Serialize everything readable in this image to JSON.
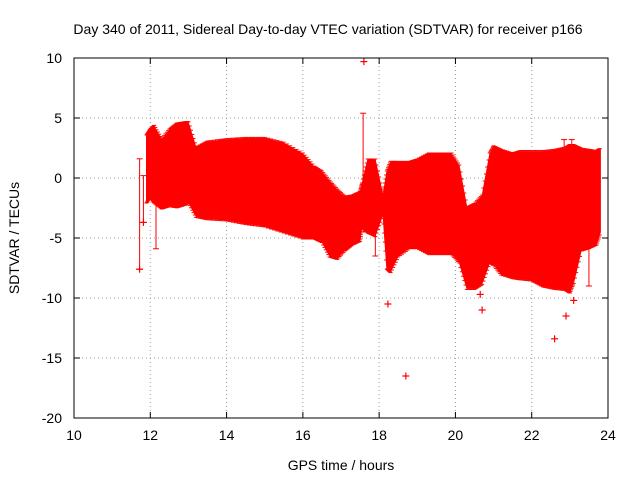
{
  "chart_data": {
    "type": "scatter",
    "title": "Day 340 of 2011, Sidereal Day-to-day VTEC variation (SDTVAR) for receiver p166",
    "xlabel": "GPS time / hours",
    "ylabel": "SDTVAR / TECUs",
    "xlim": [
      10,
      24
    ],
    "ylim": [
      -20,
      10
    ],
    "x_ticks": [
      10,
      12,
      14,
      16,
      18,
      20,
      22,
      24
    ],
    "y_ticks": [
      10,
      5,
      0,
      -5,
      -10,
      -15,
      -20
    ],
    "grid": "dotted",
    "color": "#ff0000",
    "marker": "+",
    "series": [
      {
        "name": "SDTVAR",
        "envelope": {
          "x": [
            11.9,
            12.0,
            12.1,
            12.3,
            12.5,
            12.7,
            12.9,
            13.0,
            13.2,
            13.5,
            14.0,
            14.5,
            15.0,
            15.5,
            16.0,
            16.3,
            16.5,
            16.7,
            16.9,
            17.1,
            17.3,
            17.5,
            17.55,
            17.7,
            17.9,
            18.1,
            18.2,
            18.3,
            18.5,
            18.8,
            19.0,
            19.3,
            19.6,
            19.9,
            20.1,
            20.3,
            20.5,
            20.7,
            20.9,
            21.0,
            21.2,
            21.5,
            21.7,
            22.0,
            22.3,
            22.6,
            22.9,
            23.0,
            23.1,
            23.3,
            23.5,
            23.7,
            23.8
          ],
          "top": [
            3.5,
            4.0,
            4.3,
            3.2,
            4.0,
            4.5,
            4.6,
            4.6,
            2.5,
            3.0,
            3.2,
            3.3,
            3.3,
            2.9,
            2.0,
            0.9,
            0.5,
            -0.3,
            -1.0,
            -1.6,
            -1.5,
            -1.2,
            -0.5,
            1.5,
            1.5,
            -1.5,
            0.5,
            1.3,
            1.3,
            1.3,
            1.5,
            2.0,
            2.0,
            2.0,
            1.0,
            -2.5,
            -2.2,
            -1.5,
            2.0,
            2.6,
            2.3,
            2.0,
            2.2,
            2.2,
            2.2,
            2.3,
            2.5,
            2.7,
            2.7,
            2.4,
            2.3,
            2.2,
            2.4
          ],
          "bottom": [
            -2.0,
            -1.5,
            -2.0,
            -2.5,
            -2.3,
            -2.4,
            -2.2,
            -2.0,
            -3.2,
            -3.4,
            -3.5,
            -3.8,
            -4.0,
            -4.5,
            -5.0,
            -5.0,
            -5.3,
            -6.5,
            -6.7,
            -6.0,
            -5.5,
            -5.2,
            -4.0,
            -4.5,
            -4.8,
            -3.0,
            -7.5,
            -7.8,
            -6.5,
            -5.8,
            -5.8,
            -6.3,
            -6.3,
            -6.3,
            -7.0,
            -9.2,
            -9.2,
            -8.8,
            -7.0,
            -7.2,
            -8.0,
            -8.3,
            -8.4,
            -8.5,
            -9.0,
            -9.2,
            -9.3,
            -9.5,
            -8.7,
            -6.0,
            -5.8,
            -5.5,
            -4.5
          ]
        },
        "error_bars": [
          {
            "x": 11.72,
            "low": -7.6,
            "high": 1.6
          },
          {
            "x": 11.82,
            "low": -3.7,
            "high": 0.2
          },
          {
            "x": 12.15,
            "low": -5.9,
            "high": 0.8
          },
          {
            "x": 17.58,
            "low": -4.5,
            "high": 5.4
          },
          {
            "x": 17.9,
            "low": -6.5,
            "high": -0.5
          },
          {
            "x": 22.85,
            "low": -0.5,
            "high": 3.2
          },
          {
            "x": 23.05,
            "low": -1.0,
            "high": 3.2
          },
          {
            "x": 23.5,
            "low": -9.0,
            "high": -3.5
          }
        ],
        "outliers": [
          {
            "x": 11.72,
            "y": -7.6
          },
          {
            "x": 11.82,
            "y": -3.7
          },
          {
            "x": 17.6,
            "y": 9.7
          },
          {
            "x": 18.23,
            "y": -10.5
          },
          {
            "x": 18.7,
            "y": -16.5
          },
          {
            "x": 20.7,
            "y": -11.0
          },
          {
            "x": 20.65,
            "y": -9.7
          },
          {
            "x": 22.6,
            "y": -13.4
          },
          {
            "x": 22.9,
            "y": -11.5
          },
          {
            "x": 23.1,
            "y": -10.2
          }
        ]
      }
    ]
  }
}
